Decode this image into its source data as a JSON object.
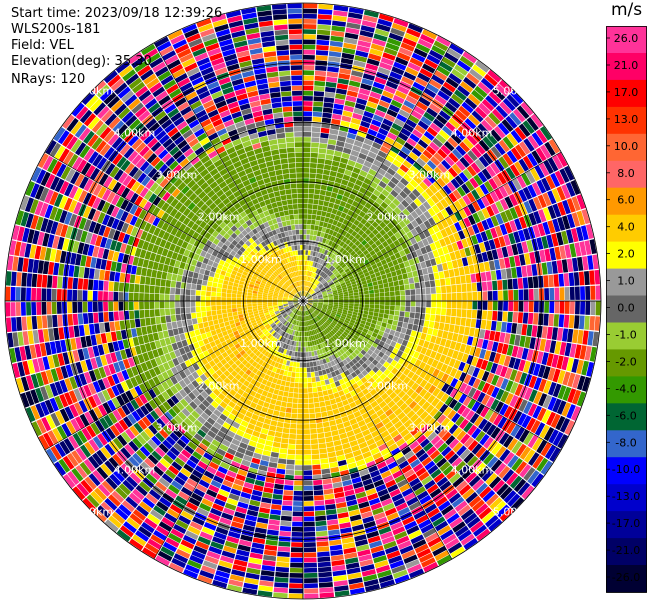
{
  "header": {
    "start_time": "Start time: 2023/09/18 12:39:26",
    "instrument": "WLS200s-181",
    "field": "Field: VEL",
    "elevation": "Elevation(deg): 35.30",
    "nrays": "NRays: 120"
  },
  "colorbar": {
    "unit": "m/s",
    "tick_labels": [
      "26.0",
      "21.0",
      "17.0",
      "13.0",
      "10.0",
      "8.0",
      "6.0",
      "4.0",
      "2.0",
      "1.0",
      "0.0",
      "-1.0",
      "-2.0",
      "-4.0",
      "-6.0",
      "-8.0",
      "-10.0",
      "-13.0",
      "-17.0",
      "-21.0",
      "-26.0",
      "-30.0"
    ],
    "colors": [
      "#ff3399",
      "#ff0066",
      "#ff0000",
      "#ff3300",
      "#ff6633",
      "#ff6666",
      "#ff9900",
      "#ffcc00",
      "#ffff00",
      "#999999",
      "#666666",
      "#99cc33",
      "#669900",
      "#339900",
      "#006633",
      "#3366cc",
      "#0000ff",
      "#0000cc",
      "#000099",
      "#000066",
      "#000033"
    ]
  },
  "chart_data": {
    "type": "heatmap",
    "projection": "polar PPI",
    "field": "VEL",
    "units": "m/s",
    "nrays": 120,
    "elevation_deg": 35.3,
    "range_ring_labels": [
      "1.00km",
      "2.00km",
      "3.00km",
      "4.00km",
      "5.00km"
    ],
    "range_rings_km": [
      1,
      2,
      3,
      4,
      5
    ],
    "max_range_km": 5.0,
    "radial_line_spacing_deg": 30,
    "value_min": -30,
    "value_max": 26,
    "pattern": {
      "near_core": "yellow positive (+2 m/s) to north, grey near-zero spiral, green negative (-2 to -6 m/s) to south",
      "outer_noise_from_km": 2.7
    }
  }
}
